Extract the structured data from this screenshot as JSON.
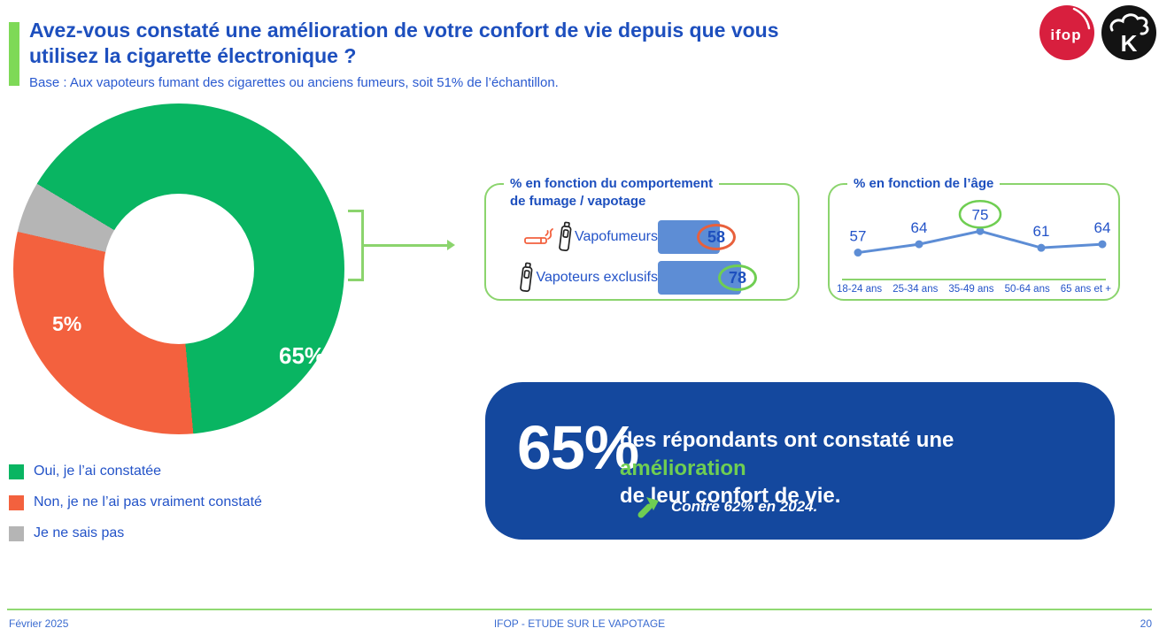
{
  "colors": {
    "title_blue": "#1d4fbe",
    "text_blue": "#2353c8",
    "accent_green": "#7ed957",
    "border_green": "#8bd46d",
    "bar_blue": "#5d8dd5",
    "dark_blue": "#14489e",
    "highlight_green": "#6fce52",
    "negative_circle_red": "#e8603c",
    "ifop_red": "#d81f3e"
  },
  "header": {
    "title_line1": "Avez-vous constaté une amélioration de votre confort de vie depuis que vous",
    "title_line2": "utilisez la cigarette électronique ?",
    "base_note": "Base : Aux vapoteurs fumant des cigarettes ou anciens fumeurs, soit 51% de l’échantillon.",
    "ifop_logo_text": "ifop",
    "partner_logo_letter": "K"
  },
  "chart_data": [
    {
      "type": "pie",
      "donut": true,
      "start_angle_deg": -59,
      "categories": [
        "Oui, je l’ai constatée",
        "Non, je ne l’ai pas vraiment constaté",
        "Je ne sais pas"
      ],
      "values": [
        65,
        30,
        5
      ],
      "labels": [
        "65%",
        "30%",
        "5%"
      ],
      "colors": [
        "#09b562",
        "#f3613e",
        "#b5b5b5"
      ],
      "legend_position": "bottom-left"
    },
    {
      "type": "bar",
      "title_line1": "% en fonction du comportement",
      "title_line2": "de fumage / vapotage",
      "categories": [
        "Vapofumeurs",
        "Vapoteurs exclusifs"
      ],
      "values": [
        58,
        78
      ],
      "value_circle_colors": [
        "#e8603c",
        "#6fce52"
      ],
      "bar_color": "#5d8dd5",
      "xlim": [
        0,
        100
      ]
    },
    {
      "type": "line",
      "title": "% en fonction de l’âge",
      "categories": [
        "18-24 ans",
        "25-34 ans",
        "35-49 ans",
        "50-64 ans",
        "65 ans et +"
      ],
      "values": [
        57,
        64,
        75,
        61,
        64
      ],
      "highlight_index": 2,
      "highlight_circle_color": "#6fce52",
      "line_color": "#5d8dd5",
      "ylim": [
        50,
        80
      ]
    }
  ],
  "callout": {
    "value": "65%",
    "line1": "des répondants ont constaté une",
    "highlight": "amélioration",
    "line2_rest": " de leur confort de vie.",
    "note": "Contre 62% en 2024."
  },
  "footer": {
    "date": "Février 2025",
    "center": "IFOP - ETUDE SUR LE VAPOTAGE",
    "page": "20"
  }
}
